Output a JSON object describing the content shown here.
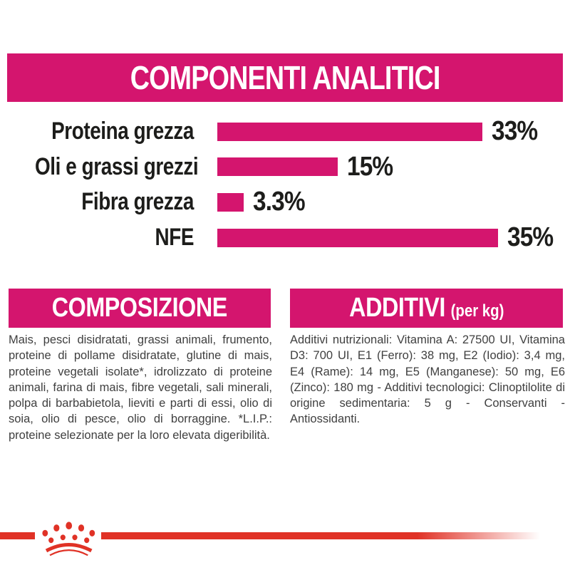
{
  "colors": {
    "magenta": "#D4156E",
    "red": "#E03226",
    "heading_text": "#FFFFFF",
    "chart_text": "#1D1D1B",
    "body_text": "#3F3F3F"
  },
  "analytical": {
    "title": "COMPONENTI ANALITICI"
  },
  "chart_data": {
    "type": "bar",
    "orientation": "horizontal",
    "title": "COMPONENTI ANALITICI",
    "categories": [
      "Proteina grezza",
      "Oli e grassi grezzi",
      "Fibra grezza",
      "NFE"
    ],
    "values": [
      33,
      15,
      3.3,
      35
    ],
    "value_labels": [
      "33%",
      "15%",
      "3.3%",
      "35%"
    ],
    "unit": "%",
    "xlim": [
      0,
      44
    ],
    "grid": false,
    "legend": "none",
    "bar_color": "#D4156E"
  },
  "composition": {
    "title": "COMPOSIZIONE",
    "body": "Mais, pesci disidratati, grassi animali, frumento, proteine di pollame disidratate, glutine di mais, proteine vegetali isolate*, idrolizzato di proteine animali, farina di mais, fibre vegetali, sali minerali, polpa di barbabietola, lieviti e parti di essi, olio di soia, olio di pesce, olio di borraggine. *L.I.P.: proteine selezionate per la loro elevata digeribilità."
  },
  "additives": {
    "title": "ADDITIVI",
    "suffix": "(per kg)",
    "body": "Additivi nutrizionali: Vitamina A: 27500 UI, Vitamina D3: 700 UI, E1 (Ferro): 38 mg, E2 (Iodio): 3,4 mg, E4 (Rame): 14 mg, E5 (Manganese): 50 mg, E6 (Zinco): 180 mg - Additivi tecnologici: Clinoptilolite di origine sedimentaria: 5 g - Conservanti - Antiossidanti."
  },
  "footer": {
    "logo": "royal-canin-crown"
  }
}
